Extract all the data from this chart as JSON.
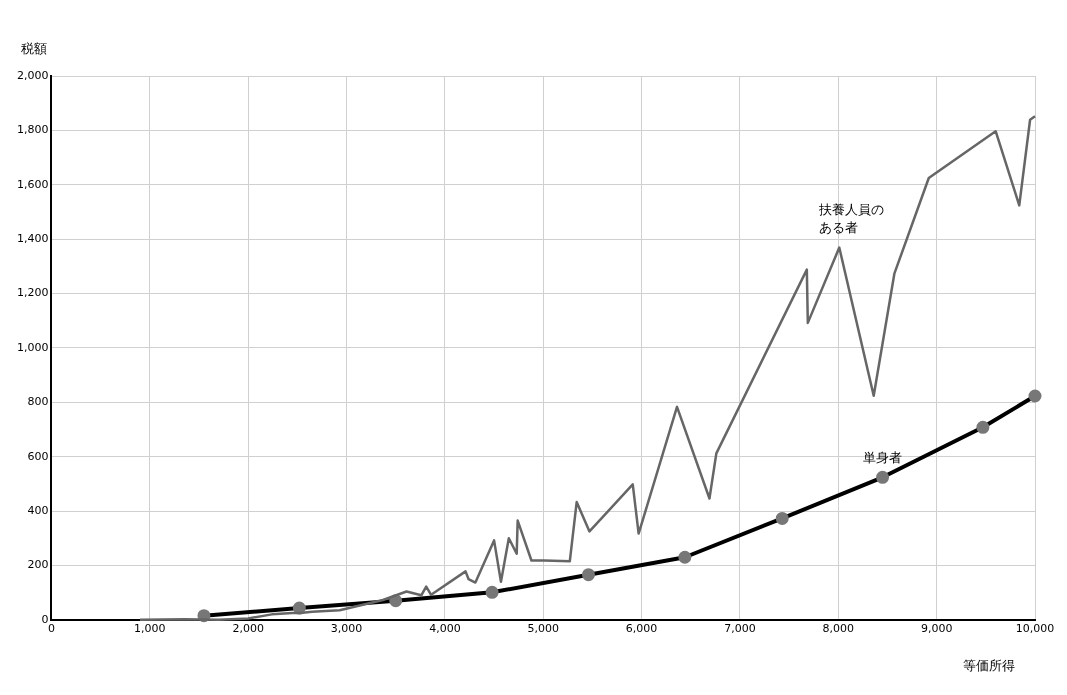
{
  "chart_data": {
    "type": "line",
    "xlabel": "等価所得",
    "ylabel": "税額",
    "xlim": [
      0,
      10000
    ],
    "xticks": [
      0,
      {
        "value": 1000,
        "label": "1,000"
      },
      {
        "value": 2000,
        "label": "2,000"
      },
      {
        "value": 3000,
        "label": "3,000"
      },
      {
        "value": 4000,
        "label": "4,000"
      },
      {
        "value": 5000,
        "label": "5,000"
      },
      {
        "value": 6000,
        "label": "6,000"
      },
      {
        "value": 7000,
        "label": "7,000"
      },
      {
        "value": 8000,
        "label": "8,000"
      },
      {
        "value": 9000,
        "label": "9,000"
      },
      {
        "value": 10000,
        "label": "10,000"
      }
    ],
    "ylim": [
      0,
      2000
    ],
    "yticks": [
      0,
      200,
      400,
      600,
      800,
      {
        "value": 1000,
        "label": "1,000"
      },
      {
        "value": 1200,
        "label": "1,200"
      },
      {
        "value": 1400,
        "label": "1,400"
      },
      {
        "value": 1600,
        "label": "1,600"
      },
      {
        "value": 1800,
        "label": "1,800"
      },
      {
        "value": 2000,
        "label": "2,000"
      }
    ],
    "grid": true,
    "legend": false,
    "line_style": "solid",
    "series": [
      {
        "name": "扶養人員のある者",
        "color": "#666666",
        "marker": "none",
        "x": [
          900,
          1350,
          1700,
          2000,
          2240,
          2450,
          2530,
          2650,
          2930,
          3370,
          3610,
          3760,
          3810,
          3860,
          4210,
          4240,
          4310,
          4500,
          4570,
          4650,
          4730,
          4740,
          4880,
          5010,
          5270,
          5340,
          5470,
          5910,
          5970,
          6360,
          6690,
          6760,
          7680,
          7690,
          8010,
          8360,
          8570,
          8920,
          9600,
          9840,
          9950,
          10000
        ],
        "values": [
          0,
          2,
          0,
          5,
          20,
          25,
          25,
          30,
          35,
          73,
          104,
          90,
          122,
          92,
          178,
          150,
          137,
          292,
          140,
          300,
          243,
          365,
          218,
          218,
          215,
          433,
          325,
          498,
          317,
          783,
          446,
          612,
          1288,
          1092,
          1369,
          824,
          1273,
          1625,
          1797,
          1524,
          1839,
          1852
        ]
      },
      {
        "name": "単身者",
        "color": "#000000",
        "marker": "circle",
        "x": [
          1550,
          2520,
          3500,
          4480,
          5460,
          6440,
          7430,
          8450,
          9470,
          10000
        ],
        "values": [
          15,
          43,
          70,
          101,
          166,
          230,
          373,
          524,
          708,
          823
        ]
      }
    ]
  }
}
